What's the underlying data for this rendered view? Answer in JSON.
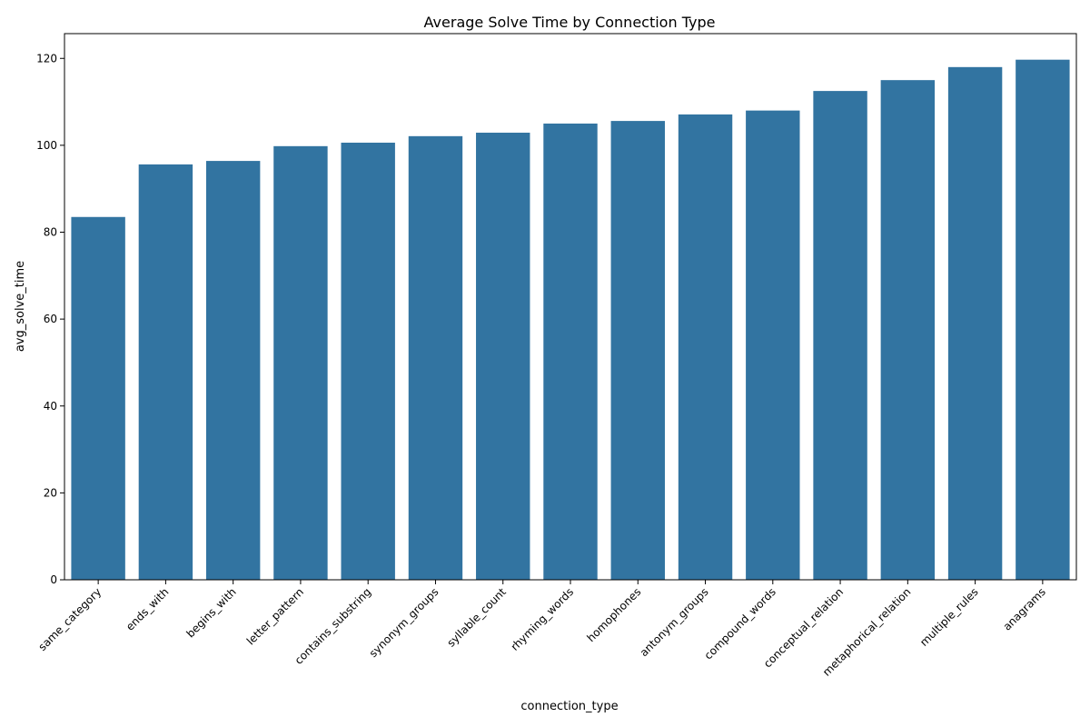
{
  "chart_data": {
    "type": "bar",
    "title": "Average Solve Time by Connection Type",
    "xlabel": "connection_type",
    "ylabel": "avg_solve_time",
    "categories": [
      "same_category",
      "ends_with",
      "begins_with",
      "letter_pattern",
      "contains_substring",
      "synonym_groups",
      "syllable_count",
      "rhyming_words",
      "homophones",
      "antonym_groups",
      "compound_words",
      "conceptual_relation",
      "metaphorical_relation",
      "multiple_rules",
      "anagrams"
    ],
    "values": [
      83.5,
      95.6,
      96.4,
      99.8,
      100.6,
      102.1,
      102.9,
      105.0,
      105.6,
      107.1,
      108.0,
      112.5,
      115.0,
      118.0,
      119.7
    ],
    "ylim": [
      0,
      125.7
    ],
    "yticks": [
      0,
      20,
      40,
      60,
      80,
      100,
      120
    ],
    "bar_color": "#3274a1",
    "grid": false,
    "legend": "none"
  }
}
